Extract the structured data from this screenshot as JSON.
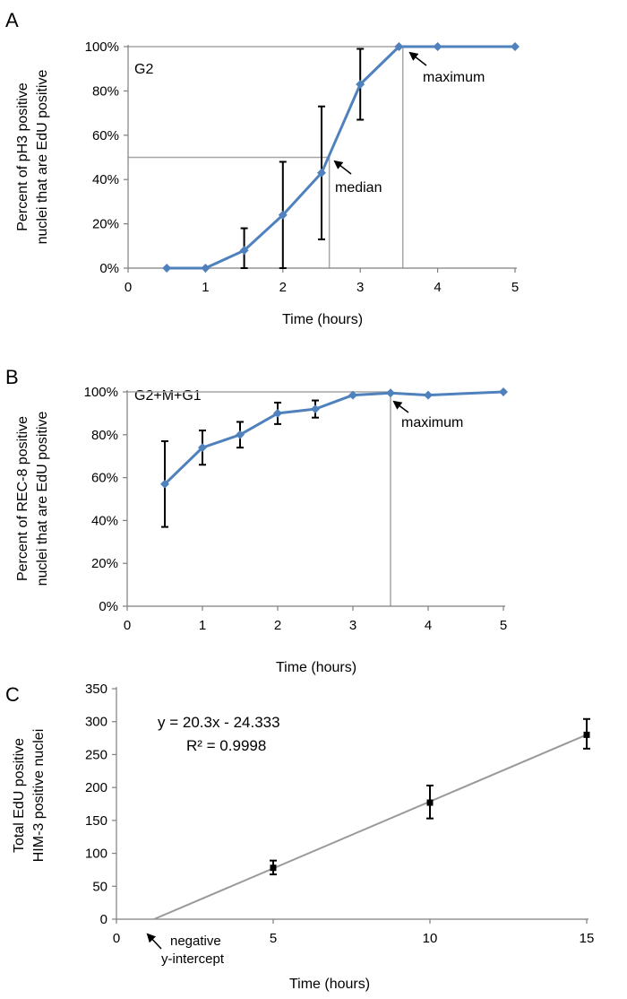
{
  "chart_data": [
    {
      "panel": "A",
      "type": "line",
      "inset_label": "G2",
      "xlabel": "Time (hours)",
      "ylabel_lines": [
        "Percent of pH3 positive",
        "nuclei that are EdU positive"
      ],
      "xlim": [
        0,
        5
      ],
      "ylim": [
        0,
        100
      ],
      "x_ticks": [
        0,
        1,
        2,
        3,
        4,
        5
      ],
      "x_tick_labels": [
        "0",
        "1",
        "2",
        "3",
        "4",
        "5"
      ],
      "y_ticks": [
        0,
        20,
        40,
        60,
        80,
        100
      ],
      "y_tick_labels": [
        "0%",
        "20%",
        "40%",
        "60%",
        "80%",
        "100%"
      ],
      "series": [
        {
          "name": "pH3",
          "x": [
            0.5,
            1,
            1.5,
            2,
            2.5,
            3,
            3.5,
            4,
            5
          ],
          "y": [
            0,
            0,
            8,
            24,
            43,
            83,
            100,
            100,
            100
          ],
          "err_low": [
            null,
            null,
            0,
            0,
            13,
            67,
            null,
            null,
            null
          ],
          "err_high": [
            null,
            null,
            18,
            48,
            73,
            99,
            null,
            null,
            null
          ]
        }
      ],
      "reference_lines": [
        {
          "kind": "median",
          "x": 2.6,
          "y": 50
        },
        {
          "kind": "maximum",
          "x": 3.55,
          "y": 100
        }
      ],
      "annotations": [
        {
          "text": "median",
          "x": 2.65,
          "y": 46
        },
        {
          "text": "maximum",
          "x": 3.6,
          "y": 98
        }
      ]
    },
    {
      "panel": "B",
      "type": "line",
      "inset_label": "G2+M+G1",
      "xlabel": "Time (hours)",
      "ylabel_lines": [
        "Percent of REC-8 positive",
        "nuclei that are EdU positive"
      ],
      "xlim": [
        0,
        5
      ],
      "ylim": [
        0,
        100
      ],
      "x_ticks": [
        0,
        1,
        2,
        3,
        4,
        5
      ],
      "x_tick_labels": [
        "0",
        "1",
        "2",
        "3",
        "4",
        "5"
      ],
      "y_ticks": [
        0,
        20,
        40,
        60,
        80,
        100
      ],
      "y_tick_labels": [
        "0%",
        "20%",
        "40%",
        "60%",
        "80%",
        "100%"
      ],
      "series": [
        {
          "name": "REC-8",
          "x": [
            0.5,
            1,
            1.5,
            2,
            2.5,
            3,
            3.5,
            4,
            5
          ],
          "y": [
            57,
            74,
            80,
            90,
            92,
            98.5,
            99.5,
            98.5,
            100
          ],
          "err_low": [
            37,
            66,
            74,
            85,
            88,
            null,
            null,
            null,
            null
          ],
          "err_high": [
            77,
            82,
            86,
            95,
            96,
            null,
            null,
            null,
            null
          ]
        }
      ],
      "reference_lines": [
        {
          "kind": "maximum",
          "x": 3.5,
          "y": 100
        }
      ],
      "annotations": [
        {
          "text": "maximum",
          "x": 3.55,
          "y": 98
        }
      ]
    },
    {
      "panel": "C",
      "type": "scatter",
      "xlabel": "Time (hours)",
      "ylabel_lines": [
        "Total EdU positive",
        "HIM-3 positive nuclei"
      ],
      "xlim": [
        0,
        15
      ],
      "ylim": [
        0,
        350
      ],
      "x_ticks": [
        0,
        5,
        10,
        15
      ],
      "x_tick_labels": [
        "0",
        "5",
        "10",
        "15"
      ],
      "y_ticks": [
        0,
        50,
        100,
        150,
        200,
        250,
        300,
        350
      ],
      "y_tick_labels": [
        "0",
        "50",
        "100",
        "150",
        "200",
        "250",
        "300",
        "350"
      ],
      "series": [
        {
          "name": "HIM-3",
          "x": [
            5,
            10,
            15
          ],
          "y": [
            78,
            177,
            280
          ],
          "err_low": [
            68,
            153,
            259
          ],
          "err_high": [
            89,
            203,
            304
          ]
        }
      ],
      "trendline": {
        "slope": 20.3,
        "intercept": -24.333
      },
      "equation_text": "y = 20.3x - 24.333",
      "r2_text": "R² = 0.9998",
      "annotation_lines": [
        "negative",
        "y-intercept"
      ]
    }
  ],
  "colors": {
    "series": "#4F81BD",
    "marker": "#4F81BD",
    "errorbar": "#000000",
    "refline": "#A6A6A6",
    "axis": "#7F7F7F",
    "trendline": "#9A9A9A",
    "scatter_marker": "#000000"
  }
}
